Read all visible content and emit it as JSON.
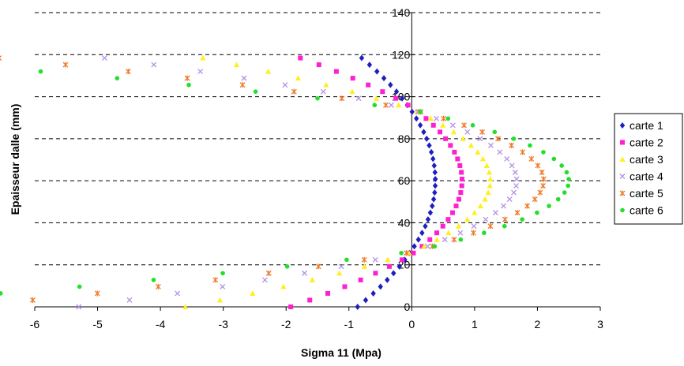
{
  "chart_data": {
    "type": "scatter",
    "xlabel": "Sigma 11 (Mpa)",
    "ylabel": "Epaisseur dalle (mm)",
    "xlim": [
      -6,
      3
    ],
    "ylim": [
      0,
      140
    ],
    "x_ticks": [
      "-6",
      "-5",
      "-4",
      "-3",
      "-2",
      "-1",
      "0",
      "1",
      "2",
      "3"
    ],
    "y_ticks": [
      "0",
      "20",
      "40",
      "60",
      "80",
      "100",
      "120",
      "140"
    ],
    "grid": "horizontal dashed",
    "legend_position": "right",
    "series": [
      {
        "name": "carte 1",
        "color": "#1f1fbf",
        "marker": "diamond",
        "k": 0.375,
        "a": 1.237
      },
      {
        "name": "carte 2",
        "color": "#ff1fcf",
        "marker": "square",
        "k": 0.8,
        "a": 2.353
      },
      {
        "name": "carte 3",
        "color": "#ffef1f",
        "marker": "triangle",
        "k": 1.25,
        "a": 3.9
      },
      {
        "name": "carte 4",
        "color": "#b490e6",
        "marker": "x",
        "k": 1.67,
        "a": 5.25
      },
      {
        "name": "carte 5",
        "color": "#f07a2a",
        "marker": "star",
        "k": 2.1,
        "a": 6.55
      },
      {
        "name": "carte 6",
        "color": "#22e02a",
        "marker": "circle",
        "k": 2.5,
        "a": 7.9
      }
    ]
  }
}
